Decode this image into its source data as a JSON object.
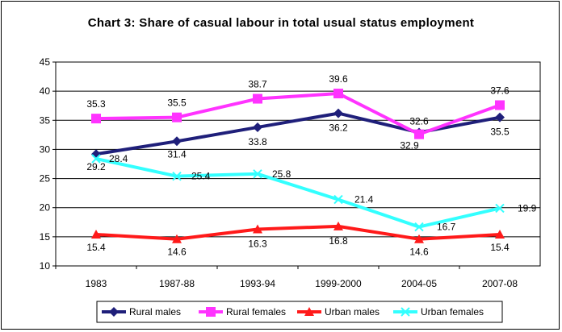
{
  "chart_data": {
    "type": "line",
    "title": "Chart 3: Share of casual labour in total usual status employment",
    "categories": [
      "1983",
      "1987-88",
      "1993-94",
      "1999-2000",
      "2004-05",
      "2007-08"
    ],
    "ylim": [
      10,
      45
    ],
    "yticks": [
      "45",
      "40",
      "35",
      "30",
      "25",
      "20",
      "15",
      "10"
    ],
    "grid": true,
    "legend_position": "bottom",
    "series": [
      {
        "name": "Rural males",
        "color": "#1f1f7a",
        "marker": "diamond",
        "values": [
          29.2,
          31.4,
          33.8,
          36.2,
          32.9,
          35.5
        ],
        "labels": [
          "29.2",
          "31.4",
          "33.8",
          "36.2",
          "32.9",
          "35.5"
        ]
      },
      {
        "name": "Rural females",
        "color": "#ff33ff",
        "marker": "square",
        "values": [
          35.3,
          35.5,
          38.7,
          39.6,
          32.6,
          37.6
        ],
        "labels": [
          "35.3",
          "35.5",
          "38.7",
          "39.6",
          "32.6",
          "37.6"
        ]
      },
      {
        "name": "Urban males",
        "color": "#ff1a1a",
        "marker": "triangle",
        "values": [
          15.4,
          14.6,
          16.3,
          16.8,
          14.6,
          15.4
        ],
        "labels": [
          "15.4",
          "14.6",
          "16.3",
          "16.8",
          "14.6",
          "15.4"
        ]
      },
      {
        "name": "Urban females",
        "color": "#33ffff",
        "marker": "x",
        "values": [
          28.4,
          25.4,
          25.8,
          21.4,
          16.7,
          19.9
        ],
        "labels": [
          "28.4",
          "25.4",
          "25.8",
          "21.4",
          "16.7",
          "19.9"
        ]
      }
    ]
  }
}
